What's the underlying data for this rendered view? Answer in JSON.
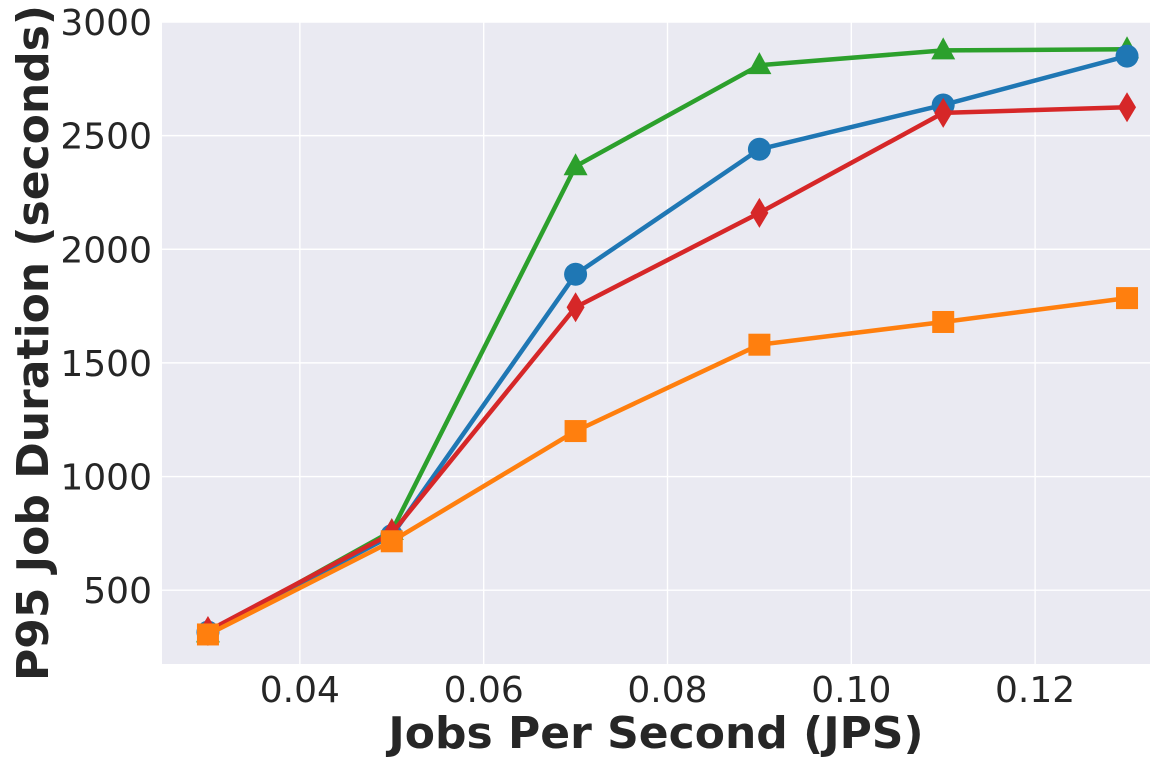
{
  "chart_data": {
    "type": "line",
    "title": "",
    "xlabel": "Jobs Per Second (JPS)",
    "ylabel": "P95 Job Duration (seconds)",
    "xlim": [
      0.025,
      0.1325
    ],
    "ylim": [
      175,
      3000
    ],
    "xticks": [
      0.04,
      0.06,
      0.08,
      0.1,
      0.12
    ],
    "xtick_labels": [
      "0.04",
      "0.06",
      "0.08",
      "0.10",
      "0.12"
    ],
    "yticks": [
      500,
      1000,
      1500,
      2000,
      2500,
      3000
    ],
    "ytick_labels": [
      "500",
      "1000",
      "1500",
      "2000",
      "2500",
      "3000"
    ],
    "grid": true,
    "legend": "none",
    "x": [
      0.03,
      0.05,
      0.07,
      0.09,
      0.11,
      0.13
    ],
    "series": [
      {
        "color": "#2ca02c",
        "marker": "triangle",
        "values": [
          310,
          760,
          2365,
          2810,
          2875,
          2880
        ]
      },
      {
        "color": "#1f77b4",
        "marker": "circle",
        "values": [
          315,
          740,
          1890,
          2440,
          2635,
          2850
        ]
      },
      {
        "color": "#d62728",
        "marker": "diamond",
        "values": [
          320,
          750,
          1745,
          2160,
          2600,
          2625
        ]
      },
      {
        "color": "#ff7f0e",
        "marker": "square",
        "values": [
          305,
          715,
          1200,
          1580,
          1680,
          1785
        ]
      }
    ]
  }
}
